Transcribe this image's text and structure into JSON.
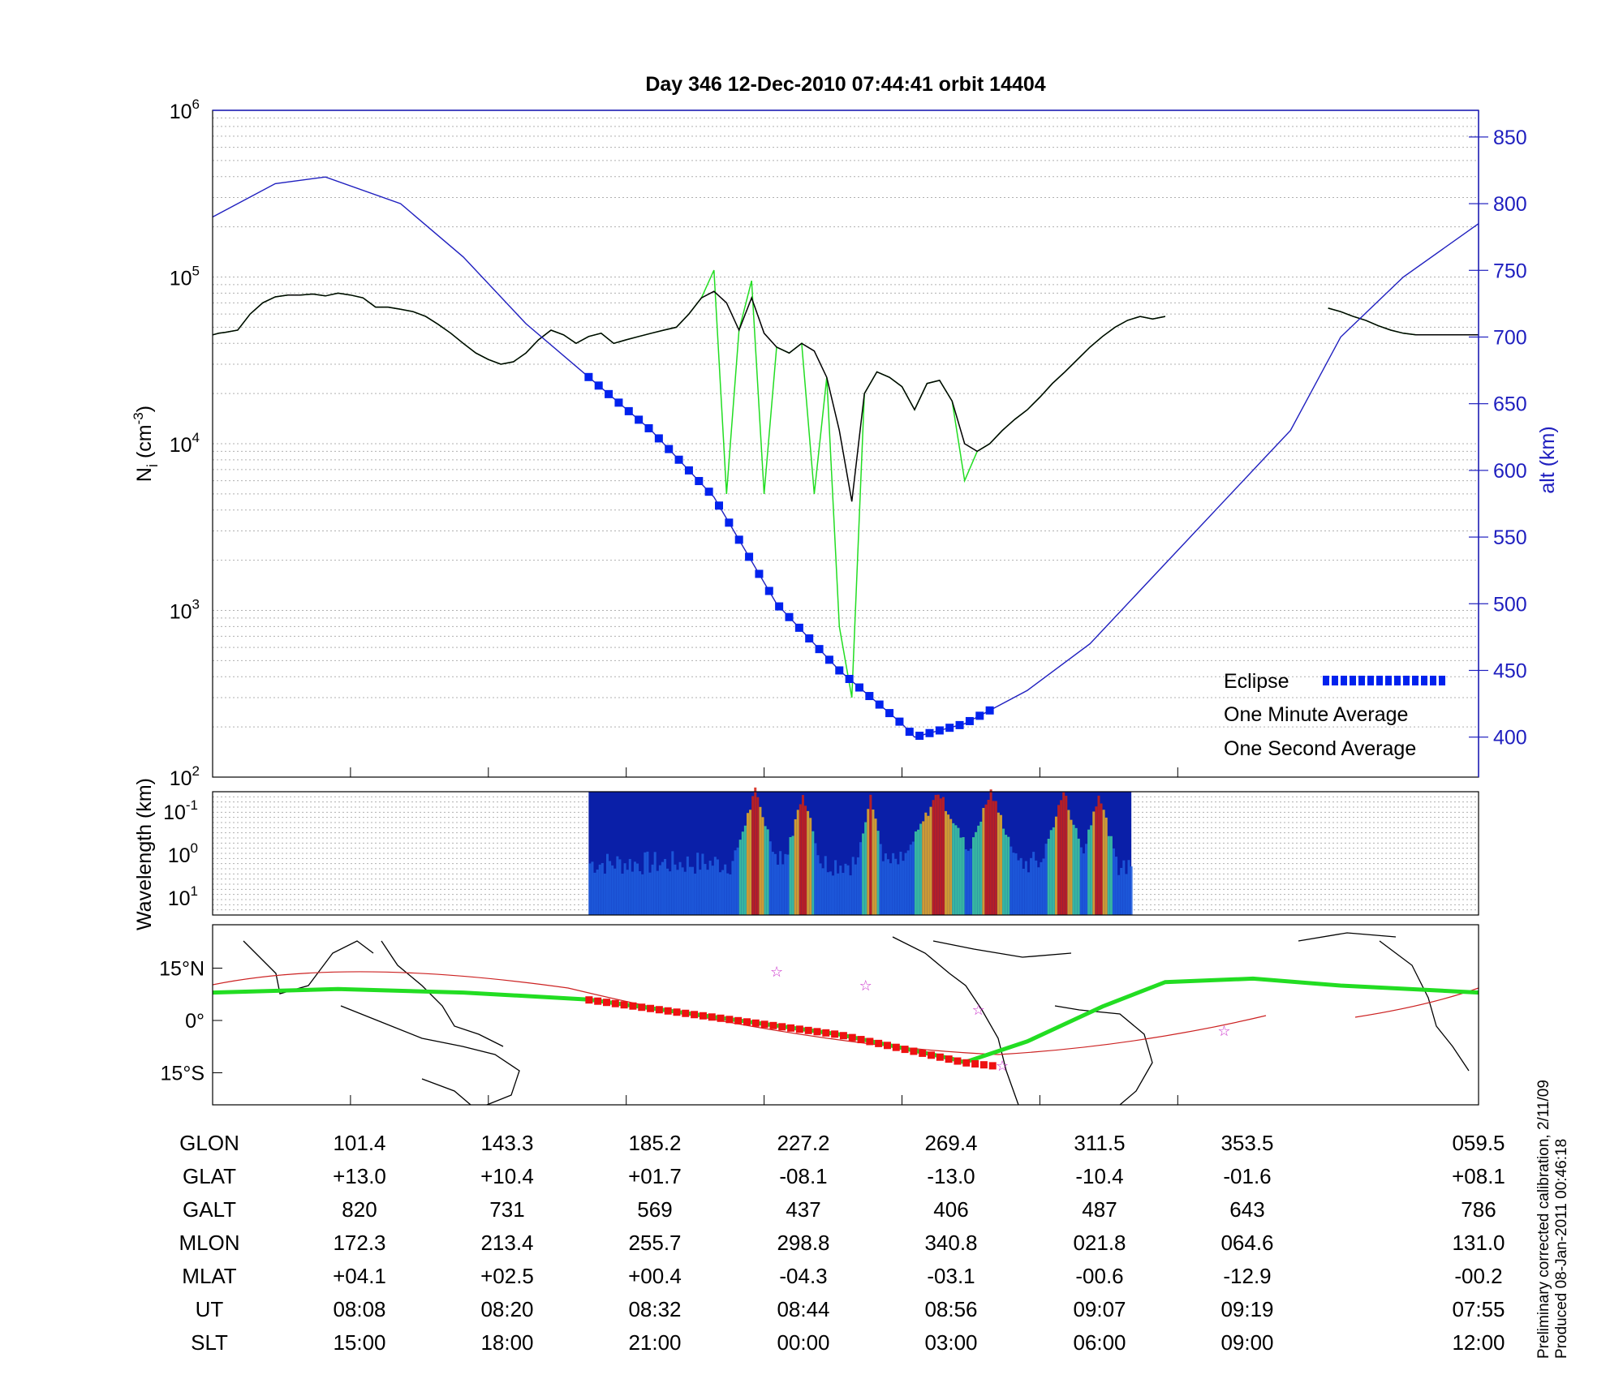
{
  "title": "Day 346  12-Dec-2010 07:44:41   orbit 14404",
  "colors": {
    "eclipse": "#0022ee",
    "one_minute": "#000000",
    "one_second": "#22dd22",
    "altitude": "#1f1fbf",
    "track": "#22dd22",
    "eclipse_track": "#ee1111",
    "orbit_line": "#cc2222",
    "star": "#cc33cc"
  },
  "chart_data": [
    {
      "id": "density",
      "type": "line",
      "ylabel": "N",
      "ylabel_sub": "i",
      "ylabel_unit_pre": " (cm",
      "ylabel_unit_sup": "-3",
      "ylabel_unit_post": ")",
      "y_scale": "log",
      "ylim": [
        100,
        1000000
      ],
      "y_ticks": [
        {
          "base": "10",
          "exp": "2"
        },
        {
          "base": "10",
          "exp": "3"
        },
        {
          "base": "10",
          "exp": "4"
        },
        {
          "base": "10",
          "exp": "5"
        },
        {
          "base": "10",
          "exp": "6"
        }
      ],
      "y2label": "alt (km)",
      "y2lim": [
        370,
        870
      ],
      "y2_ticks": [
        "400",
        "450",
        "500",
        "550",
        "600",
        "650",
        "700",
        "750",
        "800",
        "850"
      ],
      "grid": true,
      "legend_position": "bottom-right",
      "legend": [
        {
          "label": "Eclipse",
          "color": "#0022ee"
        },
        {
          "label": "One Minute Average",
          "color": "#000000"
        },
        {
          "label": "One Second Average",
          "color": "#22dd22"
        }
      ],
      "series": [
        {
          "name": "One Minute Average",
          "x": [
            0,
            5,
            10,
            20,
            30,
            40,
            50,
            60,
            70,
            80,
            90,
            100,
            110,
            120,
            130,
            140,
            150,
            160,
            170,
            180,
            190,
            200,
            210,
            220,
            230,
            240,
            250,
            260,
            270,
            280,
            290,
            300,
            310,
            320,
            330,
            340,
            350,
            360,
            370,
            380,
            390,
            400,
            410,
            420,
            430,
            440,
            450,
            460,
            470,
            480,
            490,
            500,
            510,
            520,
            530,
            540,
            550,
            560,
            570,
            580,
            590,
            600,
            610,
            620,
            630,
            640,
            650,
            660,
            670,
            680,
            690,
            700,
            710,
            720,
            730,
            740,
            750,
            760,
            770,
            780,
            790,
            800,
            810,
            820,
            830,
            840,
            850,
            860,
            870,
            880,
            890,
            900,
            910,
            920,
            930,
            940,
            950,
            960,
            970,
            980,
            990,
            1000,
            1010
          ],
          "y": [
            45000,
            46000,
            46500,
            48000,
            60000,
            70000,
            76000,
            78000,
            78000,
            79000,
            77000,
            80000,
            78000,
            75000,
            66000,
            66000,
            64000,
            62000,
            58000,
            52000,
            46000,
            40000,
            35000,
            32000,
            30000,
            31000,
            35000,
            42000,
            48000,
            45000,
            40000,
            44000,
            46000,
            40000,
            42000,
            44000,
            46000,
            48000,
            50000,
            60000,
            75000,
            82000,
            70000,
            48000,
            75000,
            46000,
            38000,
            35000,
            40000,
            36000,
            25000,
            12000,
            4500,
            20000,
            27000,
            25000,
            22000,
            16000,
            23000,
            24000,
            18000,
            10000,
            9000,
            10000,
            12000,
            14000,
            16000,
            19000,
            23000,
            27000,
            32000,
            38000,
            44000,
            50000,
            55000,
            58000,
            56000,
            58000,
            null,
            null,
            null,
            null,
            null,
            null,
            null,
            null,
            null,
            null,
            null,
            null,
            65000,
            62000,
            58000,
            55000,
            51000,
            48000,
            46000,
            45000,
            45000,
            45000,
            45000,
            45000,
            45000
          ]
        },
        {
          "name": "One Second Average",
          "x": [
            0,
            5,
            10,
            20,
            30,
            40,
            50,
            60,
            70,
            80,
            90,
            100,
            110,
            120,
            130,
            140,
            150,
            160,
            170,
            180,
            190,
            200,
            210,
            220,
            230,
            240,
            250,
            260,
            270,
            280,
            290,
            300,
            310,
            320,
            330,
            340,
            350,
            360,
            370,
            380,
            390,
            400,
            410,
            420,
            430,
            440,
            450,
            460,
            470,
            480,
            490,
            500,
            510,
            520,
            530,
            540,
            550,
            560,
            570,
            580,
            590,
            600,
            610,
            620,
            630,
            640,
            650,
            660,
            670,
            680,
            690,
            700,
            710,
            720,
            730,
            740,
            750,
            760,
            770,
            780,
            790,
            800,
            810,
            820,
            830,
            840,
            850,
            860,
            870,
            880,
            890,
            900,
            910,
            920,
            930,
            940,
            950,
            960,
            970,
            980,
            990,
            1000,
            1010
          ],
          "y": [
            45000,
            46000,
            46500,
            48000,
            60000,
            70000,
            76000,
            78000,
            78000,
            79000,
            77000,
            80000,
            78000,
            75000,
            66000,
            66000,
            64000,
            62000,
            58000,
            52000,
            46000,
            40000,
            35000,
            32000,
            30000,
            31000,
            35000,
            42000,
            48000,
            45000,
            40000,
            44000,
            46000,
            40000,
            42000,
            44000,
            46000,
            48000,
            50000,
            60000,
            75000,
            110000,
            5000,
            48000,
            95000,
            5000,
            38000,
            35000,
            40000,
            5000,
            25000,
            800,
            300,
            20000,
            27000,
            25000,
            22000,
            16000,
            23000,
            24000,
            18000,
            6000,
            9000,
            10000,
            12000,
            14000,
            16000,
            19000,
            23000,
            27000,
            32000,
            38000,
            44000,
            50000,
            55000,
            58000,
            56000,
            58000,
            null,
            null,
            null,
            null,
            null,
            null,
            null,
            null,
            null,
            null,
            null,
            null,
            65000,
            62000,
            58000,
            55000,
            51000,
            48000,
            46000,
            45000,
            45000,
            45000,
            45000,
            45000,
            45000
          ]
        },
        {
          "name": "alt (km)",
          "x": [
            0,
            50,
            90,
            150,
            200,
            250,
            300,
            350,
            400,
            450,
            500,
            550,
            560,
            600,
            650,
            700,
            750,
            800,
            840,
            860,
            900,
            950,
            1010
          ],
          "y": [
            790,
            815,
            820,
            800,
            760,
            710,
            670,
            630,
            580,
            500,
            450,
            410,
            400,
            410,
            435,
            470,
            520,
            570,
            610,
            630,
            700,
            745,
            785
          ]
        }
      ],
      "eclipse_range": [
        300,
        625
      ]
    },
    {
      "id": "spectrogram",
      "type": "heatmap",
      "ylabel": "Wavelength (km)",
      "y_ticks": [
        {
          "base": "10",
          "exp": "-1"
        },
        {
          "base": "10",
          "exp": "0"
        },
        {
          "base": "10",
          "exp": "1"
        }
      ],
      "x_range_active": [
        300,
        733
      ]
    },
    {
      "id": "ground-track",
      "type": "line",
      "y_ticks": [
        "15°N",
        "0°",
        "15°S"
      ],
      "series": [
        {
          "name": "track",
          "x": [
            0,
            100,
            200,
            300,
            400,
            500,
            590,
            600,
            650,
            710,
            760,
            830,
            900,
            1010
          ],
          "y": [
            8,
            9,
            8,
            6,
            1,
            -4,
            -11,
            -12,
            -6,
            4,
            11,
            12,
            10,
            8
          ]
        },
        {
          "name": "eclipse-track",
          "x": [
            300,
            400,
            500,
            600,
            625
          ],
          "y": [
            6,
            1,
            -4,
            -12,
            -13
          ]
        }
      ]
    }
  ],
  "table": {
    "rows": [
      {
        "label": "GLON",
        "values": [
          "101.4",
          "143.3",
          "185.2",
          "227.2",
          "269.4",
          "311.5",
          "353.5",
          "059.5"
        ]
      },
      {
        "label": "GLAT",
        "values": [
          "+13.0",
          "+10.4",
          "+01.7",
          "-08.1",
          "-13.0",
          "-10.4",
          "-01.6",
          "+08.1"
        ]
      },
      {
        "label": "GALT",
        "values": [
          "820",
          "731",
          "569",
          "437",
          "406",
          "487",
          "643",
          "786"
        ]
      },
      {
        "label": "MLON",
        "values": [
          "172.3",
          "213.4",
          "255.7",
          "298.8",
          "340.8",
          "021.8",
          "064.6",
          "131.0"
        ]
      },
      {
        "label": "MLAT",
        "values": [
          "+04.1",
          "+02.5",
          "+00.4",
          "-04.3",
          "-03.1",
          "-00.6",
          "-12.9",
          "-00.2"
        ]
      },
      {
        "label": "UT",
        "values": [
          "08:08",
          "08:20",
          "08:32",
          "08:44",
          "08:56",
          "09:07",
          "09:19",
          "07:55"
        ]
      },
      {
        "label": "SLT",
        "values": [
          "15:00",
          "18:00",
          "21:00",
          "00:00",
          "03:00",
          "06:00",
          "09:00",
          "12:00"
        ]
      }
    ]
  },
  "side_note": {
    "line1": "Preliminary corrected calibration, 2/11/09",
    "line2": "Produced 08-Jan-2011 00:46:18"
  }
}
